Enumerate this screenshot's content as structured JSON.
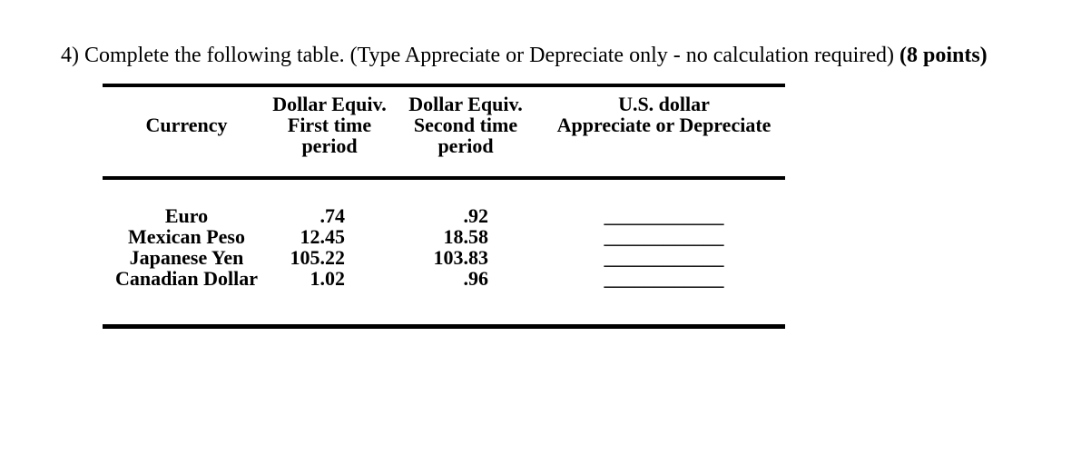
{
  "title": {
    "text": "4) Complete the following table. (Type Appreciate or Depreciate only - no calculation required) ",
    "points": "(8 points)"
  },
  "table": {
    "headers": {
      "currency": "Currency",
      "first_period": [
        "Dollar Equiv.",
        "First time",
        "period"
      ],
      "second_period": [
        "Dollar Equiv.",
        "Second time",
        "period"
      ],
      "us_dollar": [
        "U.S. dollar",
        "Appreciate or Depreciate"
      ]
    },
    "rows": [
      {
        "currency": "Euro",
        "first": ".74",
        "second": ".92",
        "blank": "____________"
      },
      {
        "currency": "Mexican Peso",
        "first": "12.45",
        "second": "18.58",
        "blank": "____________"
      },
      {
        "currency": "Japanese Yen",
        "first": "105.22",
        "second": "103.83",
        "blank": "____________"
      },
      {
        "currency": "Canadian Dollar",
        "first": "1.02",
        "second": ".96",
        "blank": "____________"
      }
    ]
  }
}
